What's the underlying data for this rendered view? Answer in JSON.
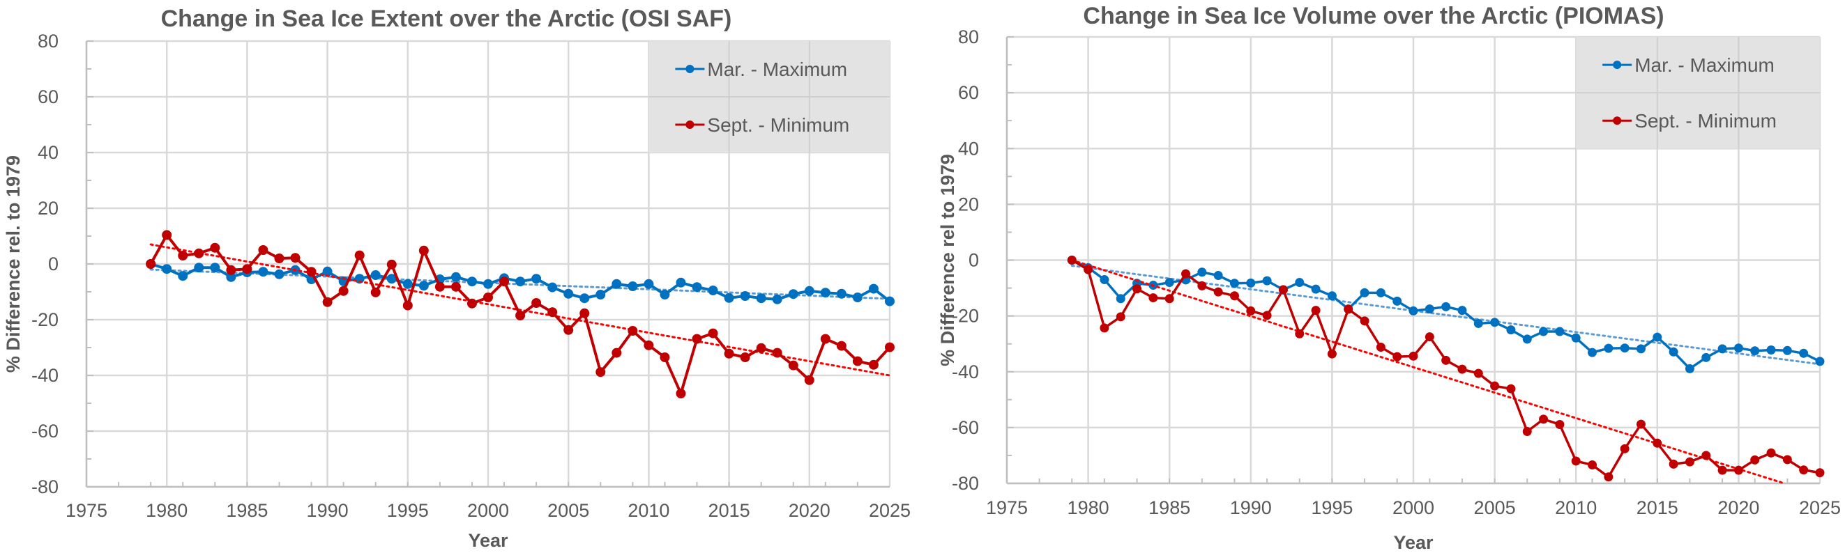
{
  "chart_data": [
    {
      "type": "line",
      "title": "Change in Sea Ice Extent over the Arctic (OSI SAF)",
      "xlabel": "Year",
      "ylabel": "% Difference rel. to 1979",
      "xlim": [
        1975,
        2025
      ],
      "ylim": [
        -80,
        80
      ],
      "x_ticks": [
        1975,
        1980,
        1985,
        1990,
        1995,
        2000,
        2005,
        2010,
        2015,
        2020,
        2025
      ],
      "y_ticks": [
        80,
        60,
        40,
        20,
        0,
        -20,
        -40,
        -60,
        -80
      ],
      "x_tick_labels": [
        "1975",
        "1980",
        "1985",
        "1990",
        "1995",
        "2000",
        "2005",
        "2010",
        "2015",
        "2020",
        "2025"
      ],
      "y_tick_labels": [
        "80",
        "60",
        "40",
        "20",
        "0",
        "-20",
        "-40",
        "-60",
        "-80"
      ],
      "grid": true,
      "legend_position": "top-right",
      "x": [
        1979,
        1980,
        1981,
        1982,
        1983,
        1984,
        1985,
        1986,
        1987,
        1988,
        1989,
        1990,
        1991,
        1992,
        1993,
        1994,
        1995,
        1996,
        1997,
        1998,
        1999,
        2000,
        2001,
        2002,
        2003,
        2004,
        2005,
        2006,
        2007,
        2008,
        2009,
        2010,
        2011,
        2012,
        2013,
        2014,
        2015,
        2016,
        2017,
        2018,
        2019,
        2020,
        2021,
        2022,
        2023,
        2024,
        2025
      ],
      "series": [
        {
          "name": "Mar. - Maximum",
          "color": "#0070c0",
          "values": [
            0,
            -1.8,
            -4.3,
            -1.3,
            -1.3,
            -4.7,
            -3,
            -2.8,
            -3.7,
            -2.2,
            -5.5,
            -2.7,
            -6.2,
            -5.3,
            -4,
            -5.3,
            -7.2,
            -7.8,
            -5.5,
            -4.7,
            -6.3,
            -7.2,
            -5.1,
            -6.3,
            -5.3,
            -8.4,
            -10.7,
            -12.3,
            -11,
            -7.2,
            -8,
            -7.2,
            -11,
            -6.7,
            -8.3,
            -9.5,
            -12.2,
            -11.5,
            -12.3,
            -12.7,
            -10.8,
            -9.7,
            -10.3,
            -10.7,
            -12,
            -8.9,
            -13.4
          ],
          "trend": {
            "style": "dotted",
            "color": "#5b9bd5",
            "start": [
              1979,
              -2.0
            ],
            "end": [
              2025,
              -12.5
            ]
          }
        },
        {
          "name": "Sept. - Minimum",
          "color": "#c00000",
          "values": [
            0,
            10.4,
            3,
            3.8,
            5.8,
            -2.2,
            -1.8,
            5,
            2,
            2.2,
            -2.8,
            -13.7,
            -9.7,
            3.1,
            -10.2,
            -0.2,
            -14.9,
            4.8,
            -8.2,
            -8.2,
            -14.2,
            -12,
            -6.3,
            -18.5,
            -14,
            -17.3,
            -23.7,
            -17.7,
            -38.8,
            -31.9,
            -24,
            -29.2,
            -33.5,
            -46.5,
            -26.9,
            -24.9,
            -32.2,
            -33.5,
            -30.2,
            -31.9,
            -36.4,
            -41.7,
            -26.9,
            -29.4,
            -34.9,
            -36.2,
            -29.9
          ],
          "trend": {
            "style": "dotted",
            "color": "#ff0000",
            "start": [
              1979,
              7.0
            ],
            "end": [
              2025,
              -40.0
            ]
          }
        }
      ]
    },
    {
      "type": "line",
      "title": "Change in Sea Ice Volume over the Arctic (PIOMAS)",
      "xlabel": "Year",
      "ylabel": "% Difference rel to 1979",
      "xlim": [
        1975,
        2025
      ],
      "ylim": [
        -80,
        80
      ],
      "x_ticks": [
        1975,
        1980,
        1985,
        1990,
        1995,
        2000,
        2005,
        2010,
        2015,
        2020,
        2025
      ],
      "y_ticks": [
        80,
        60,
        40,
        20,
        0,
        -20,
        -40,
        -60,
        -80
      ],
      "x_tick_labels": [
        "1975",
        "1980",
        "1985",
        "1990",
        "1995",
        "2000",
        "2005",
        "2010",
        "2015",
        "2020",
        "2025"
      ],
      "y_tick_labels": [
        "80",
        "60",
        "40",
        "20",
        "0",
        "-20",
        "-40",
        "-60",
        "-80"
      ],
      "grid": true,
      "legend_position": "top-right",
      "x": [
        1979,
        1980,
        1981,
        1982,
        1983,
        1984,
        1985,
        1986,
        1987,
        1988,
        1989,
        1990,
        1991,
        1992,
        1993,
        1994,
        1995,
        1996,
        1997,
        1998,
        1999,
        2000,
        2001,
        2002,
        2003,
        2004,
        2005,
        2006,
        2007,
        2008,
        2009,
        2010,
        2011,
        2012,
        2013,
        2014,
        2015,
        2016,
        2017,
        2018,
        2019,
        2020,
        2021,
        2022,
        2023,
        2024,
        2025
      ],
      "series": [
        {
          "name": "Mar. - Maximum",
          "color": "#0070c0",
          "values": [
            0,
            -2.7,
            -7,
            -13.8,
            -8.3,
            -9,
            -8,
            -7.1,
            -4.3,
            -5.5,
            -8.3,
            -8.2,
            -7.4,
            -10.6,
            -8,
            -10.4,
            -12.8,
            -17.5,
            -11.7,
            -11.7,
            -14.7,
            -18.2,
            -17.5,
            -16.7,
            -18,
            -22.7,
            -22.3,
            -25,
            -28.3,
            -25.6,
            -25.6,
            -27.9,
            -33.1,
            -31.6,
            -31.5,
            -31.8,
            -27.6,
            -32.9,
            -38.9,
            -34.9,
            -31.8,
            -31.5,
            -32.5,
            -32.2,
            -32.4,
            -33.4,
            -36.3
          ],
          "trend": {
            "style": "dotted",
            "color": "#5b9bd5",
            "start": [
              1979,
              -2.0
            ],
            "end": [
              2025,
              -37.3
            ]
          }
        },
        {
          "name": "Sept. - Minimum",
          "color": "#c00000",
          "values": [
            0,
            -3.4,
            -24.3,
            -20.3,
            -10.3,
            -13.5,
            -13.8,
            -4.9,
            -9.2,
            -11.4,
            -12.8,
            -18.2,
            -19.8,
            -10.6,
            -26.4,
            -18,
            -33.6,
            -17.6,
            -21.8,
            -31.2,
            -34.6,
            -34.4,
            -27.5,
            -35.9,
            -39.1,
            -40.6,
            -45.1,
            -46.1,
            -61.4,
            -57,
            -58.9,
            -72,
            -73.4,
            -77.7,
            -67.6,
            -58.8,
            -65.6,
            -73.1,
            -72.3,
            -70,
            -75.3,
            -75.3,
            -71.6,
            -69.1,
            -71.5,
            -75.2,
            -76.2
          ],
          "trend": {
            "style": "dotted",
            "color": "#ff0000",
            "start": [
              1979,
              0.0
            ],
            "end": [
              2025,
              -84.0
            ]
          }
        }
      ]
    }
  ]
}
